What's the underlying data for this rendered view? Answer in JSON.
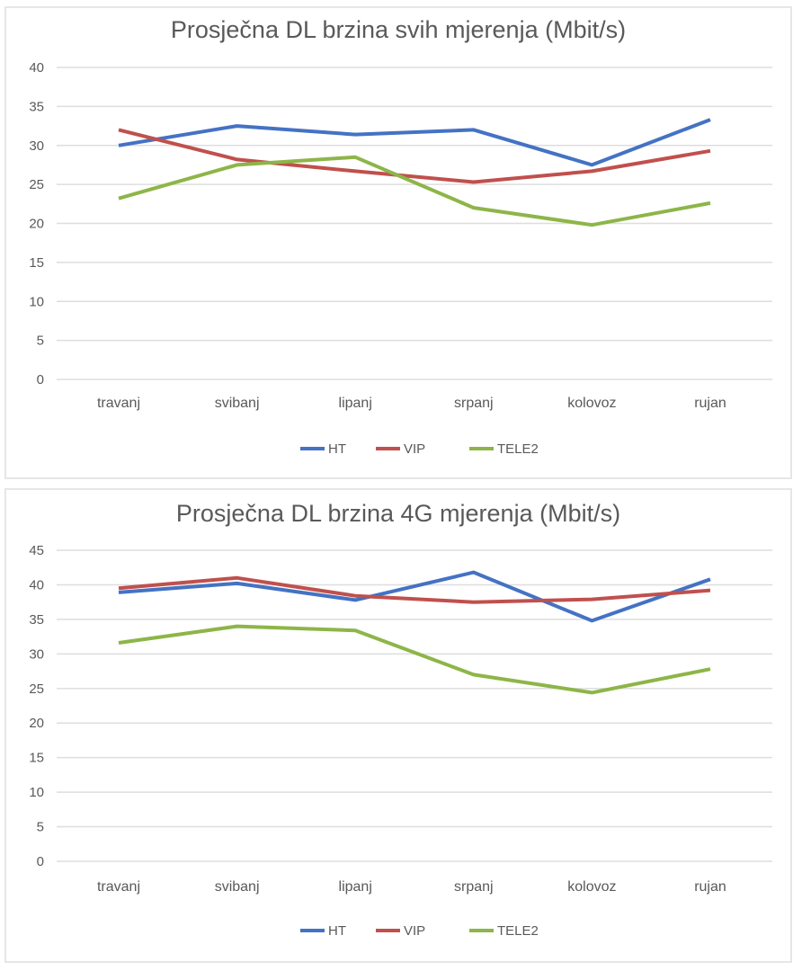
{
  "chart_data": [
    {
      "type": "line",
      "title": "Prosječna DL brzina svih mjerenja (Mbit/s)",
      "xlabel": "",
      "ylabel": "",
      "categories": [
        "travanj",
        "svibanj",
        "lipanj",
        "srpanj",
        "kolovoz",
        "rujan"
      ],
      "ylim": [
        0,
        40
      ],
      "yticks": [
        0,
        5,
        10,
        15,
        20,
        25,
        30,
        35,
        40
      ],
      "grid": true,
      "legend_position": "bottom",
      "series": [
        {
          "name": "HT",
          "color": "#4472c4",
          "values": [
            30.0,
            32.5,
            31.4,
            32.0,
            27.5,
            33.3
          ]
        },
        {
          "name": "VIP",
          "color": "#c0504d",
          "values": [
            32.0,
            28.2,
            26.7,
            25.3,
            26.7,
            29.3
          ]
        },
        {
          "name": "TELE2",
          "color": "#8db548",
          "values": [
            23.2,
            27.5,
            28.5,
            22.0,
            19.8,
            22.6
          ]
        }
      ]
    },
    {
      "type": "line",
      "title": "Prosječna DL brzina 4G mjerenja (Mbit/s)",
      "xlabel": "",
      "ylabel": "",
      "categories": [
        "travanj",
        "svibanj",
        "lipanj",
        "srpanj",
        "kolovoz",
        "rujan"
      ],
      "ylim": [
        0,
        45
      ],
      "yticks": [
        0,
        5,
        10,
        15,
        20,
        25,
        30,
        35,
        40,
        45
      ],
      "grid": true,
      "legend_position": "bottom",
      "series": [
        {
          "name": "HT",
          "color": "#4472c4",
          "values": [
            38.9,
            40.2,
            37.8,
            41.8,
            34.8,
            40.8
          ]
        },
        {
          "name": "VIP",
          "color": "#c0504d",
          "values": [
            39.5,
            41.0,
            38.4,
            37.5,
            37.9,
            39.2
          ]
        },
        {
          "name": "TELE2",
          "color": "#8db548",
          "values": [
            31.6,
            34.0,
            33.4,
            27.0,
            24.4,
            27.8
          ]
        }
      ]
    }
  ]
}
